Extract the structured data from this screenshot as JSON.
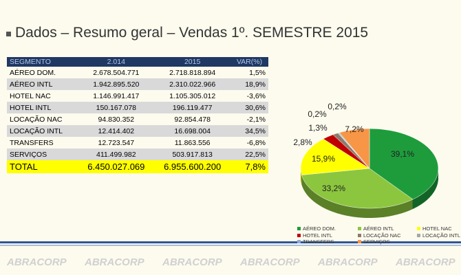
{
  "title": "Dados – Resumo geral – Vendas 1º. SEMESTRE 2015",
  "table": {
    "header": [
      "SEGMENTO",
      "2.014",
      "2015",
      "VAR(%)"
    ],
    "rows": [
      [
        "AÉREO DOM.",
        "2.678.504.771",
        "2.718.818.894",
        "1,5%"
      ],
      [
        "AÉREO INTL",
        "1.942.895.520",
        "2.310.022.966",
        "18,9%"
      ],
      [
        "HOTEL NAC",
        "1.146.991.417",
        "1.105.305.012",
        "-3,6%"
      ],
      [
        "HOTEL INTL",
        "150.167.078",
        "196.119.477",
        "30,6%"
      ],
      [
        "LOCAÇÃO NAC",
        "94.830.352",
        "92.854.478",
        "-2,1%"
      ],
      [
        "LOCAÇÃO INTL",
        "12.414.402",
        "16.698.004",
        "34,5%"
      ],
      [
        "TRANSFERS",
        "12.723.547",
        "11.863.556",
        "-6,8%"
      ],
      [
        "SERVIÇOS",
        "411.499.982",
        "503.917.813",
        "22,5%"
      ]
    ],
    "total": [
      "TOTAL",
      "6.450.027.069",
      "6.955.600.200",
      "7,8%"
    ]
  },
  "chart_data": {
    "type": "pie",
    "categories": [
      "AÉREO DOM.",
      "AÉREO INTL",
      "HOTEL NAC",
      "HOTEL INTL",
      "LOCAÇÃO NAC",
      "LOCAÇÃO INTL",
      "TRANSFERS",
      "SERVIÇOS"
    ],
    "values": [
      39.1,
      33.2,
      15.9,
      2.8,
      1.3,
      0.2,
      0.2,
      7.2
    ],
    "value_labels": [
      "39,1%",
      "33,2%",
      "15,9%",
      "2,8%",
      "1,3%",
      "0,2%",
      "0,2%",
      "7,2%"
    ],
    "colors": [
      "#1e9c3c",
      "#8cc63f",
      "#ffff00",
      "#c00000",
      "#8c7b6b",
      "#a6a6a6",
      "#8ea9db",
      "#f79646"
    ]
  },
  "footer_logo": "ABRACORP"
}
